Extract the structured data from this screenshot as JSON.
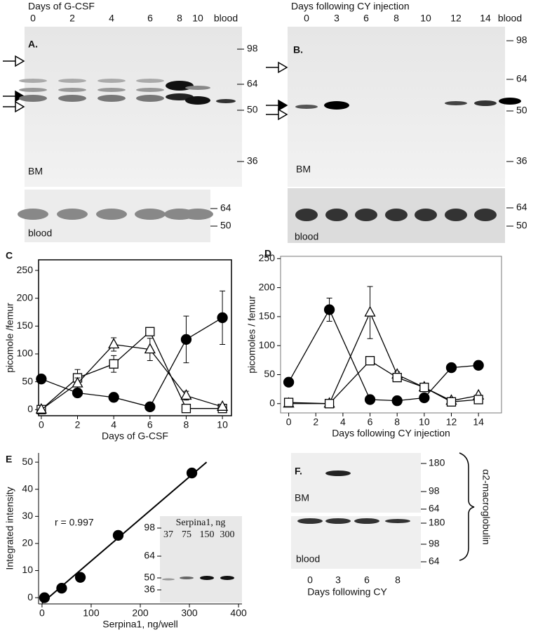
{
  "panels": {
    "A": {
      "label": "A.",
      "title": "Days of G-CSF",
      "lanes": [
        "0",
        "2",
        "4",
        "6",
        "8",
        "10",
        "blood"
      ],
      "markers": [
        "98",
        "64",
        "50",
        "36"
      ],
      "region": "BM",
      "strip_markers": [
        "64",
        "50"
      ],
      "strip_label": "blood"
    },
    "B": {
      "label": "B.",
      "title": "Days following CY injection",
      "lanes": [
        "0",
        "3",
        "6",
        "8",
        "10",
        "12",
        "14",
        "blood"
      ],
      "markers": [
        "98",
        "64",
        "50",
        "36"
      ],
      "region": "BM",
      "strip_markers": [
        "64",
        "50"
      ],
      "strip_label": "blood"
    },
    "F": {
      "label": "F.",
      "region": "BM",
      "strip_label": "blood",
      "markers": [
        "180",
        "98",
        "64"
      ],
      "strip_markers": [
        "180",
        "98",
        "64"
      ],
      "lanes": [
        "0",
        "3",
        "6",
        "8"
      ],
      "caption": "Days following CY",
      "antibody": "α2-macroglobulin"
    }
  },
  "chart_data": [
    {
      "type": "line",
      "panel_label": "C",
      "xlabel": "Days of G-CSF",
      "ylabel": "picomole /femur",
      "frame": true,
      "x": [
        0,
        2,
        4,
        6,
        8,
        10
      ],
      "xlim": [
        -0.15,
        10.5
      ],
      "ylim": [
        -11,
        269
      ],
      "xticks": [
        0,
        2,
        4,
        6,
        8,
        10
      ],
      "yticks": [
        0,
        50,
        100,
        150,
        200,
        250
      ],
      "series": [
        {
          "marker": "circle",
          "color": "#000000",
          "values": [
            55,
            30,
            22,
            5,
            126,
            165
          ],
          "errors": [
            0,
            8,
            8,
            0,
            42,
            48
          ]
        },
        {
          "marker": "square",
          "color": "#000000",
          "values": [
            0,
            57,
            82,
            140,
            2,
            2
          ],
          "errors": [
            0,
            15,
            15,
            0,
            0,
            0
          ]
        },
        {
          "marker": "triangle",
          "color": "#000000",
          "values": [
            0,
            47,
            117,
            108,
            25,
            5
          ],
          "errors": [
            0,
            10,
            12,
            20,
            8,
            0
          ]
        }
      ]
    },
    {
      "type": "line",
      "panel_label": "D",
      "xlabel": "Days following CY injection",
      "ylabel": "picomoles / femur",
      "frame": true,
      "x": [
        0,
        3,
        6,
        8,
        10,
        12,
        14
      ],
      "xlim": [
        -0.6,
        15.7
      ],
      "ylim": [
        -16,
        254
      ],
      "xticks": [
        0,
        2,
        4,
        6,
        8,
        10,
        12,
        14
      ],
      "yticks": [
        0,
        50,
        100,
        150,
        200,
        250
      ],
      "series": [
        {
          "marker": "circle",
          "color": "#000000",
          "values": [
            37,
            162,
            7,
            5,
            10,
            62,
            66
          ],
          "errors": [
            0,
            20,
            0,
            0,
            0,
            5,
            5
          ]
        },
        {
          "marker": "triangle",
          "color": "#000000",
          "values": [
            0,
            0,
            157,
            50,
            28,
            5,
            14
          ],
          "errors": [
            0,
            0,
            45,
            5,
            0,
            0,
            0
          ]
        },
        {
          "marker": "square",
          "color": "#000000",
          "values": [
            2,
            0,
            74,
            45,
            28,
            3,
            7
          ],
          "errors": [
            0,
            0,
            0,
            0,
            0,
            0,
            0
          ]
        }
      ]
    },
    {
      "type": "scatter",
      "panel_label": "E",
      "xlabel": "Serpina1, ng/well",
      "ylabel": "Integrated intensity",
      "frame": false,
      "x": [
        5,
        40,
        78,
        155,
        305
      ],
      "xlim": [
        -7,
        407
      ],
      "ylim": [
        -2.3,
        53.4
      ],
      "xticks": [
        0,
        100,
        200,
        300,
        400
      ],
      "yticks": [
        0,
        10,
        20,
        30,
        40,
        50
      ],
      "series": [
        {
          "marker": "circle",
          "color": "#000000",
          "values": [
            0,
            3.5,
            7.5,
            23,
            46
          ]
        }
      ],
      "fit": {
        "x": [
          0,
          335
        ],
        "y": [
          -2,
          50
        ]
      },
      "annotation": "r = 0.997",
      "inset": {
        "title": "Serpina1, ng",
        "lanes": [
          "37",
          "75",
          "150",
          "300"
        ],
        "markers": [
          "98",
          "64",
          "50",
          "36"
        ]
      }
    }
  ]
}
